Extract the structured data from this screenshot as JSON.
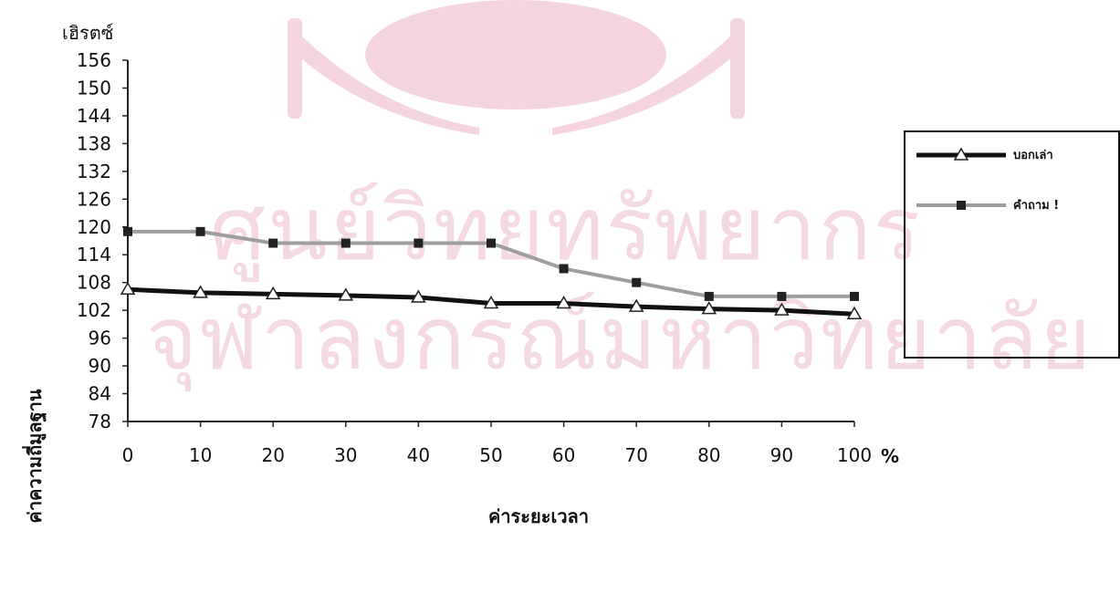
{
  "chart_data": {
    "type": "line",
    "title": "",
    "ylabel": "ค่าความถี่มูลฐาน",
    "xlabel": "ค่าระยะเวลา",
    "y_unit": "เฮิรตซ์",
    "x_unit": "%",
    "ylim": [
      78,
      156
    ],
    "xlim": [
      0,
      100
    ],
    "y_ticks": [
      "78",
      "84",
      "90",
      "96",
      "102",
      "108",
      "114",
      "120",
      "126",
      "132",
      "138",
      "144",
      "150",
      "156"
    ],
    "x_ticks": [
      "0",
      "10",
      "20",
      "30",
      "40",
      "50",
      "60",
      "70",
      "80",
      "90",
      "100"
    ],
    "x": [
      0,
      10,
      20,
      30,
      40,
      50,
      60,
      70,
      80,
      90,
      100
    ],
    "series": [
      {
        "name": "บอกเล่า",
        "marker": "triangle",
        "color": "#111111",
        "values": [
          106.5,
          105.8,
          105.5,
          105.2,
          104.8,
          103.5,
          103.5,
          102.8,
          102.3,
          102,
          101.2
        ]
      },
      {
        "name": "คำถาม !",
        "marker": "square",
        "color": "#9e9e9e",
        "values": [
          119,
          119,
          116.5,
          116.5,
          116.5,
          116.5,
          111,
          108,
          105,
          105,
          105
        ]
      }
    ],
    "legend": "right",
    "grid": false
  },
  "watermark": {
    "line1": "ศูนย์วิทยทรัพยากร",
    "line2": "จุฬาลงกรณ์มหาวิทยาลัย"
  },
  "colors": {
    "watermark": "#c2185b",
    "seal": "#c2185b"
  }
}
